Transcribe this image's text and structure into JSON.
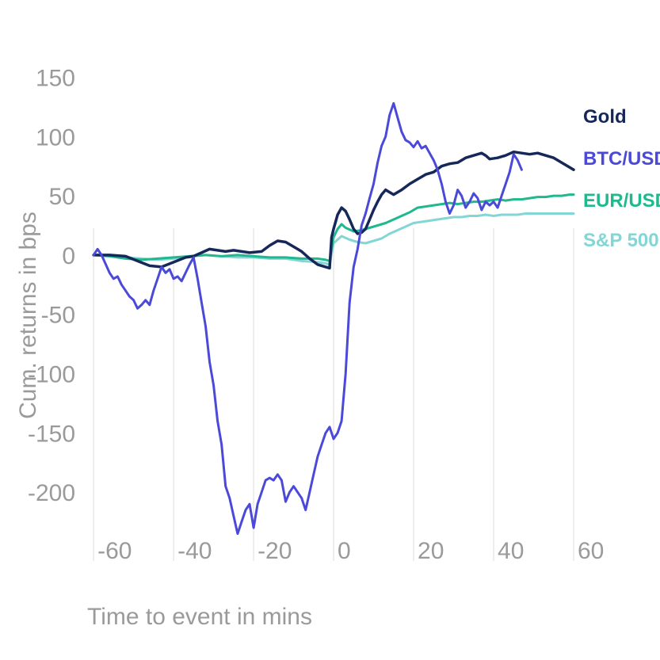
{
  "chart_data": {
    "type": "line",
    "title": "",
    "xlabel": "Time to event in mins",
    "ylabel": "Cum. returns in bps",
    "xlim": [
      -62,
      60
    ],
    "ylim": [
      -258,
      165
    ],
    "xticks": [
      -60,
      -40,
      -20,
      0,
      20,
      40,
      60
    ],
    "xtick_labels": [
      "-60",
      "-40",
      "-20",
      "0",
      "20",
      "40",
      "60"
    ],
    "yticks": [
      150,
      100,
      50,
      0,
      -50,
      -100,
      -150,
      -200
    ],
    "ytick_labels": [
      "150",
      "100",
      "50",
      "0",
      "-50",
      "-100",
      "-150",
      "-200"
    ],
    "grid": "vertical",
    "legend": "right",
    "series": [
      {
        "name": "Gold",
        "color": "#16275a",
        "points": [
          [
            -60,
            0
          ],
          [
            -56,
            0
          ],
          [
            -52,
            -1
          ],
          [
            -49,
            -5
          ],
          [
            -46,
            -9
          ],
          [
            -43,
            -10
          ],
          [
            -40,
            -6
          ],
          [
            -37,
            -2
          ],
          [
            -35,
            -1
          ],
          [
            -33,
            2
          ],
          [
            -31,
            5
          ],
          [
            -29,
            4
          ],
          [
            -27,
            3
          ],
          [
            -25,
            4
          ],
          [
            -23,
            3
          ],
          [
            -21,
            2
          ],
          [
            -18,
            3
          ],
          [
            -16,
            8
          ],
          [
            -14,
            12
          ],
          [
            -12,
            11
          ],
          [
            -10,
            7
          ],
          [
            -8,
            3
          ],
          [
            -6,
            -3
          ],
          [
            -4,
            -8
          ],
          [
            -2,
            -10
          ],
          [
            -1,
            -11
          ],
          [
            -0.5,
            15
          ],
          [
            0,
            22
          ],
          [
            1,
            34
          ],
          [
            2,
            40
          ],
          [
            3,
            37
          ],
          [
            4,
            30
          ],
          [
            5,
            22
          ],
          [
            6,
            18
          ],
          [
            7,
            19
          ],
          [
            8,
            22
          ],
          [
            9,
            30
          ],
          [
            10,
            38
          ],
          [
            11,
            45
          ],
          [
            12,
            51
          ],
          [
            13,
            55
          ],
          [
            14,
            53
          ],
          [
            15,
            51
          ],
          [
            17,
            55
          ],
          [
            19,
            60
          ],
          [
            21,
            64
          ],
          [
            23,
            68
          ],
          [
            25,
            70
          ],
          [
            27,
            75
          ],
          [
            29,
            77
          ],
          [
            31,
            78
          ],
          [
            33,
            82
          ],
          [
            35,
            84
          ],
          [
            37,
            86
          ],
          [
            38,
            84
          ],
          [
            39,
            81
          ],
          [
            41,
            82
          ],
          [
            43,
            84
          ],
          [
            45,
            87
          ],
          [
            47,
            86
          ],
          [
            49,
            85
          ],
          [
            51,
            86
          ],
          [
            53,
            84
          ],
          [
            55,
            82
          ],
          [
            57,
            78
          ],
          [
            59,
            74
          ],
          [
            60,
            72
          ]
        ]
      },
      {
        "name": "BTC/USD",
        "color": "#4b49d8",
        "points": [
          [
            -60,
            0
          ],
          [
            -59,
            5
          ],
          [
            -58,
            0
          ],
          [
            -56,
            -15
          ],
          [
            -55,
            -20
          ],
          [
            -54,
            -18
          ],
          [
            -53,
            -25
          ],
          [
            -52,
            -30
          ],
          [
            -51,
            -35
          ],
          [
            -50,
            -38
          ],
          [
            -49,
            -45
          ],
          [
            -48,
            -42
          ],
          [
            -47,
            -38
          ],
          [
            -46,
            -42
          ],
          [
            -45,
            -30
          ],
          [
            -44,
            -20
          ],
          [
            -43,
            -10
          ],
          [
            -42,
            -15
          ],
          [
            -41,
            -12
          ],
          [
            -40,
            -20
          ],
          [
            -39,
            -18
          ],
          [
            -38,
            -22
          ],
          [
            -37,
            -15
          ],
          [
            -36,
            -8
          ],
          [
            -35,
            -2
          ],
          [
            -34,
            -20
          ],
          [
            -33,
            -40
          ],
          [
            -32,
            -60
          ],
          [
            -31,
            -90
          ],
          [
            -30,
            -110
          ],
          [
            -29,
            -140
          ],
          [
            -28,
            -160
          ],
          [
            -27,
            -195
          ],
          [
            -26,
            -205
          ],
          [
            -25,
            -220
          ],
          [
            -24,
            -235
          ],
          [
            -23,
            -225
          ],
          [
            -22,
            -215
          ],
          [
            -21,
            -210
          ],
          [
            -20,
            -230
          ],
          [
            -19,
            -210
          ],
          [
            -18,
            -200
          ],
          [
            -17,
            -190
          ],
          [
            -16,
            -188
          ],
          [
            -15,
            -190
          ],
          [
            -14,
            -185
          ],
          [
            -13,
            -190
          ],
          [
            -12,
            -208
          ],
          [
            -11,
            -200
          ],
          [
            -10,
            -195
          ],
          [
            -9,
            -200
          ],
          [
            -8,
            -205
          ],
          [
            -7,
            -215
          ],
          [
            -6,
            -200
          ],
          [
            -5,
            -185
          ],
          [
            -4,
            -170
          ],
          [
            -3,
            -160
          ],
          [
            -2,
            -150
          ],
          [
            -1,
            -145
          ],
          [
            0,
            -155
          ],
          [
            1,
            -150
          ],
          [
            2,
            -140
          ],
          [
            3,
            -100
          ],
          [
            4,
            -40
          ],
          [
            5,
            -10
          ],
          [
            6,
            5
          ],
          [
            7,
            25
          ],
          [
            8,
            35
          ],
          [
            9,
            48
          ],
          [
            10,
            60
          ],
          [
            11,
            78
          ],
          [
            12,
            92
          ],
          [
            13,
            100
          ],
          [
            14,
            118
          ],
          [
            15,
            128
          ],
          [
            16,
            116
          ],
          [
            17,
            104
          ],
          [
            18,
            97
          ],
          [
            19,
            95
          ],
          [
            20,
            91
          ],
          [
            21,
            96
          ],
          [
            22,
            90
          ],
          [
            23,
            92
          ],
          [
            24,
            86
          ],
          [
            25,
            80
          ],
          [
            26,
            72
          ],
          [
            27,
            60
          ],
          [
            28,
            45
          ],
          [
            29,
            35
          ],
          [
            30,
            42
          ],
          [
            31,
            55
          ],
          [
            32,
            50
          ],
          [
            33,
            40
          ],
          [
            34,
            45
          ],
          [
            35,
            52
          ],
          [
            36,
            48
          ],
          [
            37,
            38
          ],
          [
            38,
            45
          ],
          [
            39,
            42
          ],
          [
            40,
            45
          ],
          [
            41,
            40
          ],
          [
            42,
            50
          ],
          [
            43,
            60
          ],
          [
            44,
            70
          ],
          [
            45,
            85
          ],
          [
            46,
            80
          ],
          [
            47,
            72
          ]
        ]
      },
      {
        "name": "EUR/USD",
        "color": "#1fb88f",
        "points": [
          [
            -60,
            0
          ],
          [
            -56,
            -1
          ],
          [
            -52,
            -3
          ],
          [
            -48,
            -4
          ],
          [
            -44,
            -3
          ],
          [
            -40,
            -2
          ],
          [
            -36,
            -1
          ],
          [
            -32,
            0
          ],
          [
            -28,
            -1
          ],
          [
            -24,
            0
          ],
          [
            -20,
            -1
          ],
          [
            -16,
            -2
          ],
          [
            -12,
            -2
          ],
          [
            -8,
            -3
          ],
          [
            -4,
            -3
          ],
          [
            -2,
            -4
          ],
          [
            -1,
            -5
          ],
          [
            0,
            15
          ],
          [
            1,
            22
          ],
          [
            2,
            26
          ],
          [
            3,
            23
          ],
          [
            5,
            20
          ],
          [
            7,
            21
          ],
          [
            9,
            23
          ],
          [
            11,
            25
          ],
          [
            13,
            27
          ],
          [
            15,
            30
          ],
          [
            17,
            33
          ],
          [
            19,
            36
          ],
          [
            21,
            40
          ],
          [
            23,
            41
          ],
          [
            25,
            42
          ],
          [
            27,
            43
          ],
          [
            29,
            44
          ],
          [
            31,
            43
          ],
          [
            33,
            44
          ],
          [
            35,
            45
          ],
          [
            37,
            45
          ],
          [
            39,
            46
          ],
          [
            41,
            47
          ],
          [
            43,
            46
          ],
          [
            45,
            47
          ],
          [
            47,
            47
          ],
          [
            49,
            48
          ],
          [
            51,
            49
          ],
          [
            53,
            49
          ],
          [
            55,
            50
          ],
          [
            57,
            50
          ],
          [
            59,
            51
          ],
          [
            60,
            51
          ]
        ]
      },
      {
        "name": "S&P 500",
        "color": "#84d6d6",
        "points": [
          [
            -60,
            0
          ],
          [
            -56,
            -1
          ],
          [
            -52,
            -2
          ],
          [
            -48,
            -3
          ],
          [
            -44,
            -4
          ],
          [
            -40,
            -3
          ],
          [
            -36,
            -1
          ],
          [
            -32,
            0
          ],
          [
            -28,
            -1
          ],
          [
            -24,
            -2
          ],
          [
            -20,
            -2
          ],
          [
            -16,
            -3
          ],
          [
            -12,
            -3
          ],
          [
            -8,
            -5
          ],
          [
            -4,
            -6
          ],
          [
            -2,
            -7
          ],
          [
            -1,
            -8
          ],
          [
            0,
            10
          ],
          [
            2,
            16
          ],
          [
            4,
            13
          ],
          [
            6,
            11
          ],
          [
            8,
            10
          ],
          [
            10,
            12
          ],
          [
            12,
            14
          ],
          [
            14,
            18
          ],
          [
            16,
            21
          ],
          [
            18,
            24
          ],
          [
            20,
            27
          ],
          [
            22,
            28
          ],
          [
            24,
            29
          ],
          [
            26,
            30
          ],
          [
            28,
            31
          ],
          [
            30,
            32
          ],
          [
            32,
            32
          ],
          [
            34,
            33
          ],
          [
            36,
            33
          ],
          [
            38,
            34
          ],
          [
            40,
            33
          ],
          [
            42,
            34
          ],
          [
            44,
            34
          ],
          [
            46,
            34
          ],
          [
            48,
            35
          ],
          [
            50,
            35
          ],
          [
            52,
            35
          ],
          [
            54,
            35
          ],
          [
            56,
            35
          ],
          [
            58,
            35
          ],
          [
            60,
            35
          ]
        ]
      }
    ]
  }
}
